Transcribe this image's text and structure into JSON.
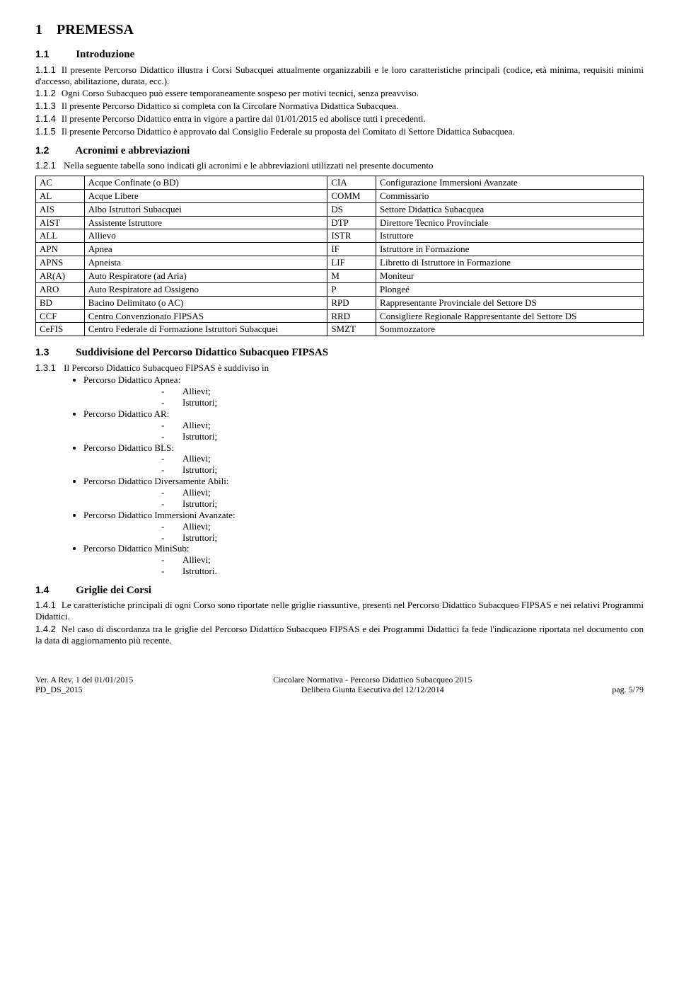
{
  "h1": {
    "num": "1",
    "title": "PREMESSA"
  },
  "s11": {
    "num": "1.1",
    "title": "Introduzione",
    "paras": [
      {
        "num": "1.1.1",
        "text": "Il presente Percorso Didattico illustra i Corsi Subacquei attualmente organizzabili e le loro caratteristiche principali (codice, età minima, requisiti minimi d'accesso, abilitazione, durata, ecc.)."
      },
      {
        "num": "1.1.2",
        "text": "Ogni Corso Subacqueo può essere temporaneamente sospeso per motivi tecnici, senza preavviso."
      },
      {
        "num": "1.1.3",
        "text": "Il presente Percorso Didattico si completa con la Circolare Normativa Didattica Subacquea."
      },
      {
        "num": "1.1.4",
        "text": "Il presente Percorso Didattico entra in vigore a partire dal 01/01/2015 ed abolisce tutti i precedenti."
      },
      {
        "num": "1.1.5",
        "text": "Il presente Percorso Didattico è approvato dal Consiglio Federale su proposta del Comitato di Settore Didattica Subacquea."
      }
    ]
  },
  "s12": {
    "num": "1.2",
    "title": "Acronimi e abbreviazioni",
    "lead": {
      "num": "1.2.1",
      "text": "Nella seguente tabella sono indicati gli acronimi e le abbreviazioni utilizzati nel presente documento"
    },
    "rows": [
      [
        "AC",
        "Acque Confinate (o BD)",
        "CIA",
        "Configurazione Immersioni Avanzate"
      ],
      [
        "AL",
        "Acque Libere",
        "COMM",
        "Commissario"
      ],
      [
        "AIS",
        "Albo Istruttori Subacquei",
        "DS",
        "Settore Didattica Subacquea"
      ],
      [
        "AIST",
        "Assistente Istruttore",
        "DTP",
        "Direttore Tecnico Provinciale"
      ],
      [
        "ALL",
        "Allievo",
        "ISTR",
        "Istruttore"
      ],
      [
        "APN",
        "Apnea",
        "IF",
        "Istruttore in Formazione"
      ],
      [
        "APNS",
        "Apneista",
        "LIF",
        "Libretto di Istruttore in Formazione"
      ],
      [
        "AR(A)",
        "Auto Respiratore (ad Aria)",
        "M",
        "Moniteur"
      ],
      [
        "ARO",
        "Auto Respiratore ad Ossigeno",
        "P",
        "Plongeé"
      ],
      [
        "BD",
        "Bacino Delimitato (o AC)",
        "RPD",
        "Rappresentante Provinciale del Settore DS"
      ],
      [
        "CCF",
        "Centro Convenzionato FIPSAS",
        "RRD",
        "Consigliere Regionale Rappresentante del Settore DS"
      ],
      [
        "CeFIS",
        "Centro Federale di Formazione Istruttori Subacquei",
        "SMZT",
        "Sommozzatore"
      ]
    ]
  },
  "s13": {
    "num": "1.3",
    "title": "Suddivisione del Percorso Didattico Subacqueo FIPSAS",
    "lead": {
      "num": "1.3.1",
      "text": "Il Percorso Didattico Subacqueo FIPSAS è suddiviso in"
    },
    "groups": [
      {
        "label": "Percorso Didattico Apnea:",
        "items": [
          "Allievi;",
          "Istruttori;"
        ]
      },
      {
        "label": "Percorso Didattico AR:",
        "items": [
          "Allievi;",
          "Istruttori;"
        ]
      },
      {
        "label": "Percorso Didattico BLS:",
        "items": [
          "Allievi;",
          "Istruttori;"
        ]
      },
      {
        "label": "Percorso Didattico Diversamente Abili:",
        "items": [
          "Allievi;",
          "Istruttori;"
        ]
      },
      {
        "label": "Percorso Didattico Immersioni Avanzate:",
        "items": [
          "Allievi;",
          "Istruttori;"
        ]
      },
      {
        "label": "Percorso Didattico MiniSub:",
        "items": [
          "Allievi;",
          "Istruttori."
        ]
      }
    ]
  },
  "s14": {
    "num": "1.4",
    "title": "Griglie dei Corsi",
    "paras": [
      {
        "num": "1.4.1",
        "text": "Le caratteristiche principali di ogni Corso sono riportate nelle griglie riassuntive, presenti nel Percorso Didattico Subacqueo FIPSAS e nei relativi Programmi Didattici."
      },
      {
        "num": "1.4.2",
        "text": "Nel caso di discordanza tra le griglie del Percorso Didattico Subacqueo FIPSAS e dei Programmi Didattici fa fede l'indicazione riportata nel documento con la data di aggiornamento più recente."
      }
    ]
  },
  "footer": {
    "left1": "Ver. A Rev. 1 del 01/01/2015",
    "left2": "PD_DS_2015",
    "center1": "Circolare Normativa - Percorso Didattico Subacqueo 2015",
    "center2": "Delibera Giunta Esecutiva del 12/12/2014",
    "right": "pag. 5/79"
  },
  "colors": {
    "text": "#000000",
    "background": "#ffffff",
    "border": "#000000"
  }
}
